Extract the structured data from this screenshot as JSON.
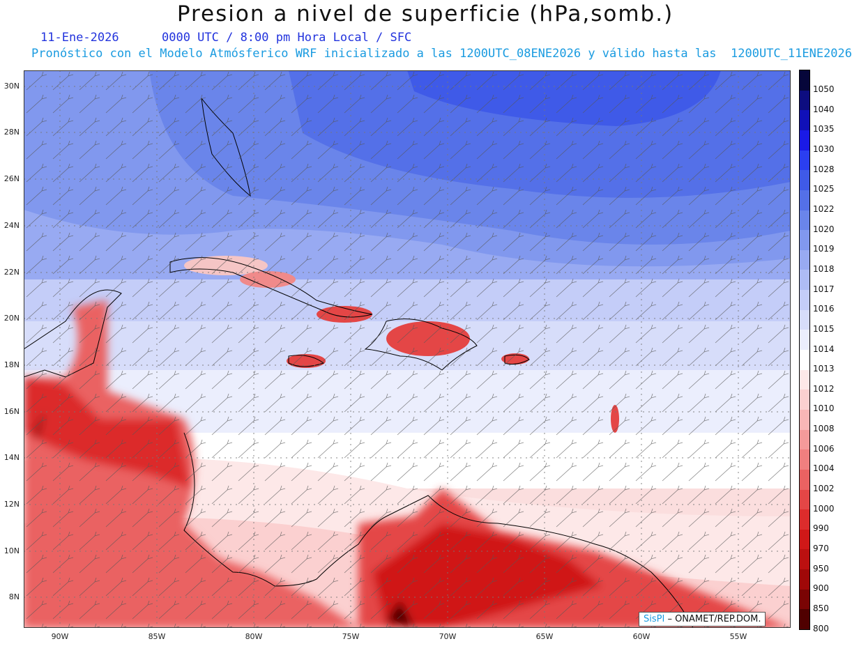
{
  "title": "Presion a nivel de superficie (hPa,somb.)",
  "date_line": "11-Ene-2026      0000 UTC / 8:00 pm Hora Local / SFC",
  "forecast_line": "Pronóstico con el Modelo Atmósferico WRF inicializado a las 1200UTC_08ENE2026 y válido hasta las  1200UTC_11ENE2026",
  "lat_labels": [
    "30N",
    "28N",
    "26N",
    "24N",
    "22N",
    "20N",
    "18N",
    "16N",
    "14N",
    "12N",
    "10N",
    "8N"
  ],
  "lon_labels": [
    "90W",
    "85W",
    "80W",
    "75W",
    "70W",
    "65W",
    "60W",
    "55W"
  ],
  "colorbar": {
    "labels": [
      "1050",
      "1040",
      "1035",
      "1030",
      "1028",
      "1025",
      "1022",
      "1020",
      "1019",
      "1018",
      "1017",
      "1016",
      "1015",
      "1014",
      "1013",
      "1012",
      "1010",
      "1008",
      "1006",
      "1004",
      "1002",
      "1000",
      "990",
      "970",
      "950",
      "900",
      "850",
      "800"
    ],
    "colors": [
      "#06063a",
      "#0d0d80",
      "#1010b8",
      "#1a1ae6",
      "#2b3ff0",
      "#3f5ae8",
      "#5470e8",
      "#6a85ea",
      "#8198ee",
      "#98aaf2",
      "#aebcf5",
      "#c4cdf8",
      "#d7ddfa",
      "#ebeefd",
      "#ffffff",
      "#fde8e8",
      "#fbd0d0",
      "#f8b6b6",
      "#f49a9a",
      "#f07f7f",
      "#ea6262",
      "#e44646",
      "#dc2c2c",
      "#d01818",
      "#bb1010",
      "#a00808",
      "#7a0404",
      "#500000"
    ]
  },
  "credit": {
    "brand": "SisPI",
    "text": " – ONAMET/REP.DOM."
  }
}
